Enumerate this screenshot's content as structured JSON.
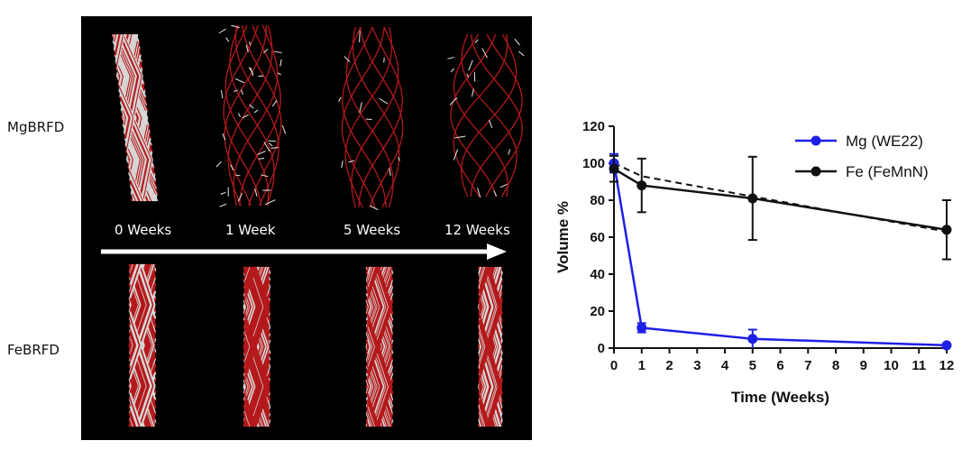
{
  "figure": {
    "row_labels": {
      "mg": "MgBRFD",
      "fe": "FeBRFD"
    },
    "time_labels": [
      "0 Weeks",
      "1 Week",
      "5 Weeks",
      "12 Weeks"
    ],
    "colors": {
      "panel_background": "#000000",
      "strut_red": "#b4191b",
      "strut_white": "#d8d8d8",
      "arrow": "#ffffff"
    }
  },
  "chart_data": {
    "type": "line",
    "xlabel": "Time (Weeks)",
    "ylabel": "Volume %",
    "xlim": [
      0,
      12
    ],
    "ylim": [
      0,
      120
    ],
    "xticks": [
      0,
      1,
      2,
      3,
      4,
      5,
      6,
      7,
      8,
      9,
      10,
      11,
      12
    ],
    "yticks": [
      0,
      20,
      40,
      60,
      80,
      100,
      120
    ],
    "legend_position": "top-right",
    "grid": false,
    "series": [
      {
        "name": "Mg (WE22)",
        "color": "#1f1fe6",
        "x": [
          0,
          1,
          5,
          12
        ],
        "y": [
          100,
          11,
          5,
          1.5
        ],
        "error": [
          5,
          2.5,
          5,
          0.8
        ]
      },
      {
        "name": "Fe (FeMnN)",
        "color": "#111111",
        "x": [
          0,
          1,
          5,
          12
        ],
        "y": [
          97,
          88,
          81,
          64
        ],
        "error": [
          7,
          14.5,
          22.5,
          16
        ]
      }
    ],
    "fit_line": {
      "series": "Fe (FeMnN)",
      "style": "dashed",
      "x": [
        0,
        1,
        5,
        12
      ],
      "y": [
        100,
        93,
        82,
        63
      ]
    }
  }
}
